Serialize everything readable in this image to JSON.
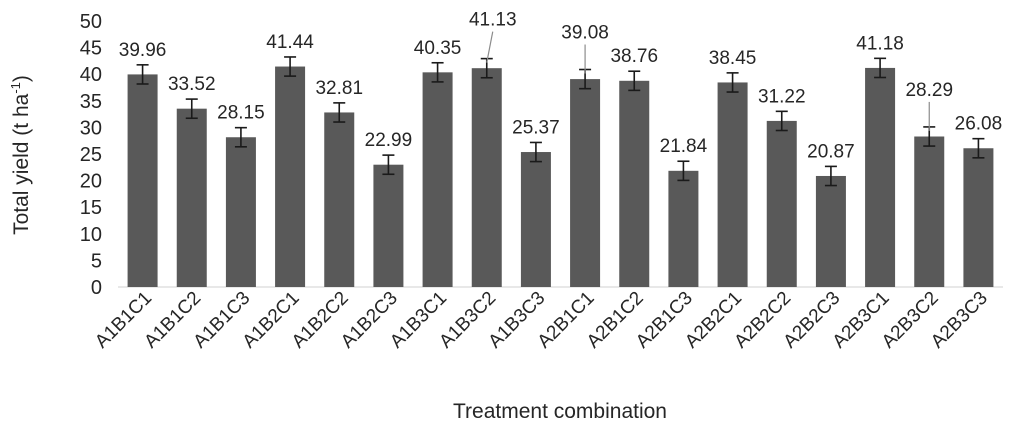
{
  "chart_data": {
    "type": "bar",
    "title": "",
    "xlabel": "Treatment combination",
    "ylabel_main": "Total yield (t ha",
    "ylabel_sup": "-1",
    "ylabel_close": ")",
    "ylim": [
      0,
      50
    ],
    "yticks": [
      "0",
      "5",
      "10",
      "15",
      "20",
      "25",
      "30",
      "35",
      "40",
      "45",
      "50"
    ],
    "grid": false,
    "error_bars": true,
    "bar_color": "#595959",
    "categories": [
      "A1B1C1",
      "A1B1C2",
      "A1B1C3",
      "A1B2C1",
      "A1B2C2",
      "A1B2C3",
      "A1B3C1",
      "A1B3C2",
      "A1B3C3",
      "A2B1C1",
      "A2B1C2",
      "A2B1C3",
      "A2B2C1",
      "A2B2C2",
      "A2B2C3",
      "A2B3C1",
      "A2B3C2",
      "A2B3C3"
    ],
    "values": [
      39.96,
      33.52,
      28.15,
      41.44,
      32.81,
      22.99,
      40.35,
      41.13,
      25.37,
      39.08,
      38.76,
      21.84,
      38.45,
      31.22,
      20.87,
      41.18,
      28.29,
      26.08
    ],
    "labels": [
      "39.96",
      "33.52",
      "28.15",
      "41.44",
      "32.81",
      "22.99",
      "40.35",
      "41.13",
      "25.37",
      "39.08",
      "38.76",
      "21.84",
      "38.45",
      "31.22",
      "20.87",
      "41.18",
      "28.29",
      "26.08"
    ],
    "errors": [
      1.8,
      1.8,
      1.8,
      1.8,
      1.8,
      1.8,
      1.8,
      1.8,
      1.8,
      1.8,
      1.8,
      1.8,
      1.8,
      1.8,
      1.8,
      1.8,
      1.8,
      1.8
    ]
  }
}
